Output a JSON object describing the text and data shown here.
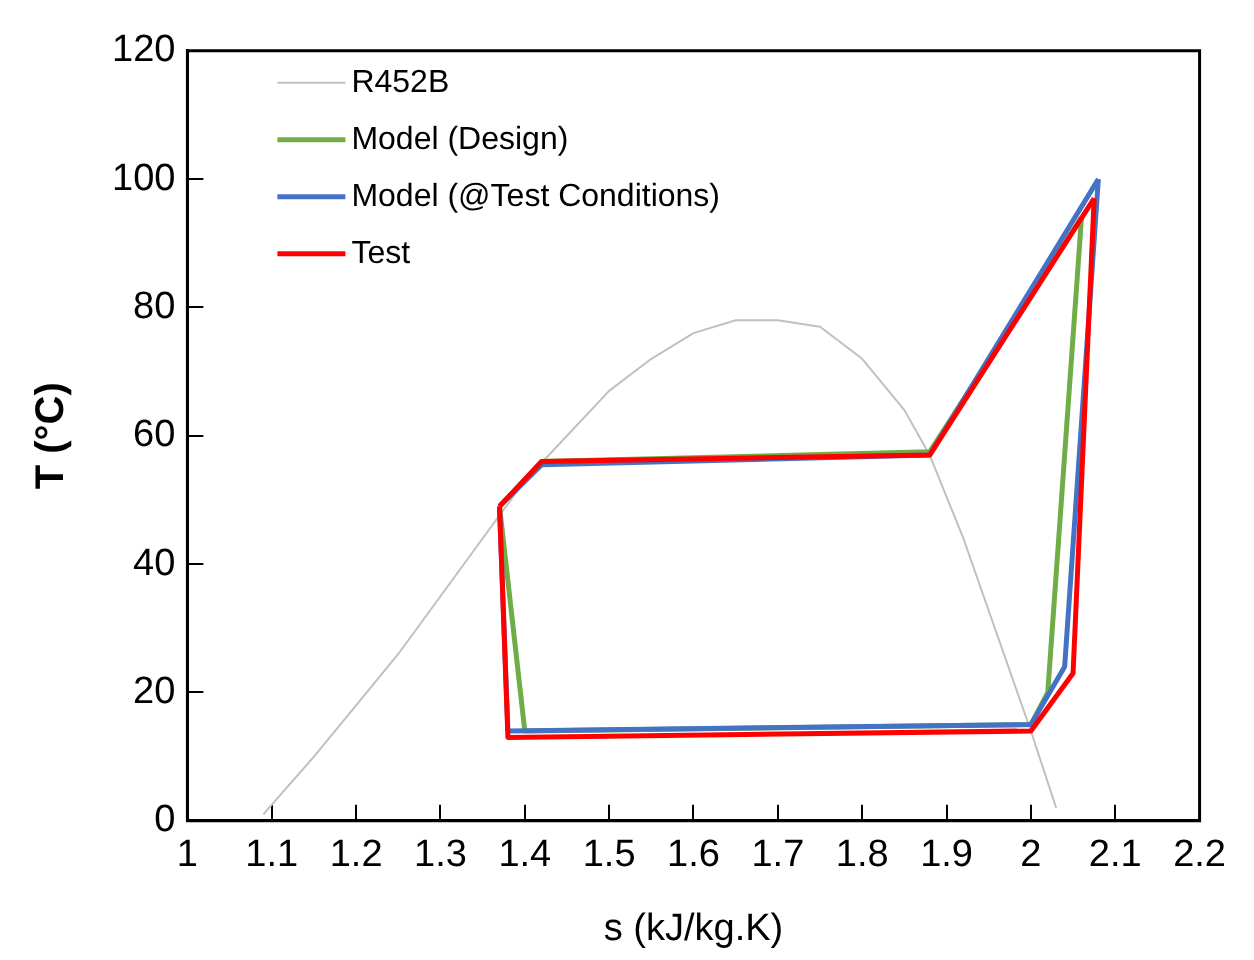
{
  "chart_data": {
    "type": "line",
    "xlabel": "s (kJ/kg.K)",
    "ylabel": "T (°C)",
    "xlim": [
      1,
      2.2
    ],
    "xticks": [
      1,
      1.1,
      1.2,
      1.3,
      1.4,
      1.5,
      1.6,
      1.7,
      1.8,
      1.9,
      2,
      2.1,
      2.2
    ],
    "ylim": [
      0,
      120
    ],
    "yticks": [
      0,
      20,
      40,
      60,
      80,
      100,
      120
    ],
    "grid": false,
    "legend": "top left",
    "marker": "none",
    "series": [
      {
        "name": "R452B",
        "color": "#c0c0c0",
        "x": [
          1.09,
          1.15,
          1.2,
          1.25,
          1.3,
          1.35,
          1.4,
          1.45,
          1.5,
          1.55,
          1.6,
          1.65,
          1.7,
          1.75,
          1.8,
          1.85,
          1.88,
          1.92,
          1.96,
          2.0,
          2.03
        ],
        "values": [
          1,
          10,
          18,
          26,
          35,
          44,
          53,
          60,
          67,
          72,
          76,
          78,
          78,
          77,
          72,
          64,
          57,
          44,
          29,
          14,
          2
        ]
      },
      {
        "name": "Model (Design)",
        "color": "#70ad47",
        "x": [
          1.37,
          1.42,
          1.88,
          2.06
        ],
        "values": [
          49,
          56,
          57.5,
          94
        ]
      },
      {
        "color": "#70ad47",
        "x": [
          1.37,
          1.4,
          2.0,
          2.02,
          2.06
        ],
        "values": [
          49,
          14,
          15,
          20,
          94
        ]
      },
      {
        "name": "Model (@Test Conditions)",
        "color": "#4472c4",
        "x": [
          1.37,
          1.42,
          1.88,
          2.08
        ],
        "values": [
          49,
          55.5,
          57,
          100
        ]
      },
      {
        "color": "#4472c4",
        "x": [
          1.37,
          1.38,
          2.0,
          2.04,
          2.08
        ],
        "values": [
          49,
          14,
          15,
          24,
          100
        ]
      },
      {
        "name": "Test",
        "color": "#ff0000",
        "x": [
          1.37,
          1.42,
          1.88,
          2.075
        ],
        "values": [
          49,
          56,
          57,
          97
        ]
      },
      {
        "color": "#ff0000",
        "x": [
          1.37,
          1.38,
          2.0,
          2.05,
          2.075
        ],
        "values": [
          49,
          13,
          14,
          23,
          97
        ]
      }
    ]
  }
}
